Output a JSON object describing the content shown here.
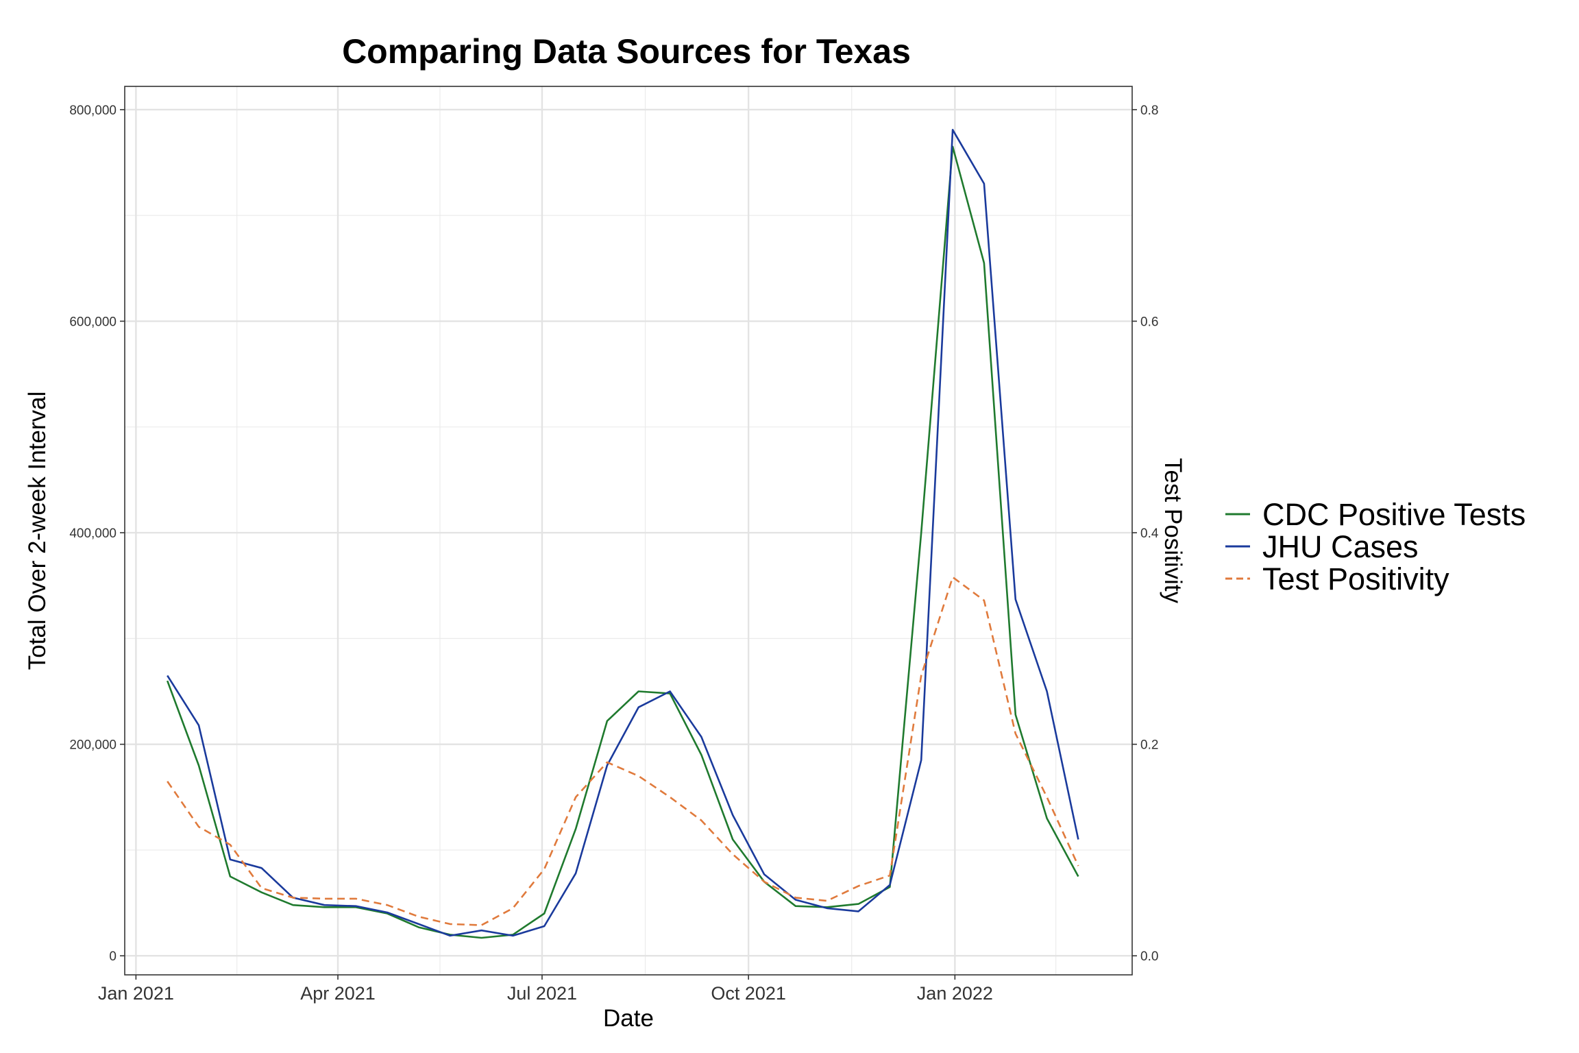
{
  "chart_data": {
    "type": "line",
    "title": "Comparing Data Sources for Texas",
    "xlabel": "Date",
    "ylabel": "Total Over 2-week Interval",
    "y2label": "Test Positivity",
    "x_ticks": [
      "Jan 2021",
      "Apr 2021",
      "Jul 2021",
      "Oct 2021",
      "Jan 2022"
    ],
    "x_tick_dates": [
      "2021-01-01",
      "2021-04-01",
      "2021-07-01",
      "2021-10-01",
      "2022-01-01"
    ],
    "xlim": [
      "2020-12-27",
      "2022-03-21"
    ],
    "ylim": [
      -18000,
      822000
    ],
    "y_ticks": [
      0,
      200000,
      400000,
      600000,
      800000
    ],
    "y_tick_labels": [
      "0",
      "200,000",
      "400,000",
      "600,000",
      "800,000"
    ],
    "y2lim": [
      -0.018,
      0.822
    ],
    "y2_ticks": [
      0.0,
      0.2,
      0.4,
      0.6,
      0.8
    ],
    "y2_tick_labels": [
      "0.0",
      "0.2",
      "0.4",
      "0.6",
      "0.8"
    ],
    "grid": true,
    "legend_position": "right",
    "x": [
      "2021-01-15",
      "2021-01-29",
      "2021-02-12",
      "2021-02-26",
      "2021-03-12",
      "2021-03-26",
      "2021-04-09",
      "2021-04-23",
      "2021-05-07",
      "2021-05-21",
      "2021-06-04",
      "2021-06-18",
      "2021-07-02",
      "2021-07-16",
      "2021-07-30",
      "2021-08-13",
      "2021-08-27",
      "2021-09-10",
      "2021-09-24",
      "2021-10-08",
      "2021-10-22",
      "2021-11-05",
      "2021-11-19",
      "2021-12-03",
      "2021-12-17",
      "2021-12-31",
      "2022-01-14",
      "2022-01-28",
      "2022-02-11",
      "2022-02-25"
    ],
    "series": [
      {
        "name": "CDC Positive Tests",
        "axis": "left",
        "color": "#1f7a2e",
        "dash": "solid",
        "values": [
          260000,
          180000,
          75000,
          60000,
          48000,
          46000,
          46000,
          40000,
          27000,
          20000,
          17000,
          20000,
          40000,
          120000,
          222000,
          250000,
          248000,
          190000,
          110000,
          70000,
          47000,
          46000,
          49000,
          65000,
          400000,
          765000,
          655000,
          228000,
          130000,
          75000
        ]
      },
      {
        "name": "JHU Cases",
        "axis": "left",
        "color": "#1a3a9c",
        "dash": "solid",
        "values": [
          265000,
          218000,
          91000,
          83000,
          55000,
          48000,
          47000,
          41000,
          30000,
          19000,
          24000,
          19000,
          28000,
          78000,
          180000,
          235000,
          250000,
          207000,
          133000,
          77000,
          53000,
          45000,
          42000,
          67000,
          185000,
          781000,
          730000,
          337000,
          250000,
          110000
        ]
      },
      {
        "name": "Test Positivity",
        "axis": "right",
        "color": "#e07a3c",
        "dash": "dashed",
        "values": [
          0.165,
          0.122,
          0.105,
          0.064,
          0.055,
          0.054,
          0.054,
          0.048,
          0.037,
          0.03,
          0.029,
          0.045,
          0.082,
          0.15,
          0.183,
          0.17,
          0.15,
          0.128,
          0.096,
          0.07,
          0.055,
          0.052,
          0.066,
          0.076,
          0.265,
          0.358,
          0.336,
          0.21,
          0.15,
          0.085
        ]
      }
    ]
  }
}
